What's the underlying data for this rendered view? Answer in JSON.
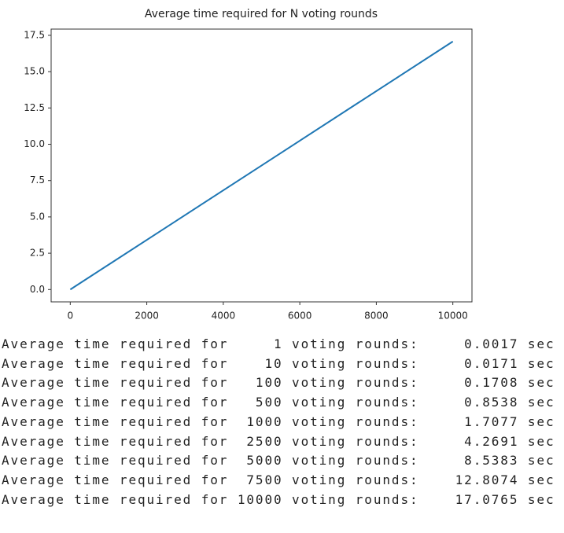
{
  "chart_data": {
    "type": "line",
    "title": "Average time required for N voting rounds",
    "x": [
      1,
      10,
      100,
      500,
      1000,
      2500,
      5000,
      7500,
      10000
    ],
    "series": [
      {
        "name": null,
        "color": "#1f77b4",
        "values": [
          0.0017,
          0.0171,
          0.1708,
          0.8538,
          1.7077,
          4.2691,
          8.5383,
          12.8074,
          17.0765
        ]
      }
    ],
    "xlim": [
      -500,
      10500
    ],
    "xticks": [
      0,
      2000,
      4000,
      6000,
      8000,
      10000
    ],
    "ylim": [
      -0.85,
      17.93
    ],
    "yticks": [
      {
        "value": 0,
        "label": "0.0"
      },
      2.5,
      {
        "value": 5,
        "label": "5.0"
      },
      7.5,
      {
        "value": 10,
        "label": "10.0"
      },
      12.5,
      {
        "value": 15,
        "label": "15.0"
      },
      17.5
    ],
    "grid": false
  },
  "output": [
    "Average time required for     1 voting rounds:     0.0017 sec",
    "Average time required for    10 voting rounds:     0.0171 sec",
    "Average time required for   100 voting rounds:     0.1708 sec",
    "Average time required for   500 voting rounds:     0.8538 sec",
    "Average time required for  1000 voting rounds:     1.7077 sec",
    "Average time required for  2500 voting rounds:     4.2691 sec",
    "Average time required for  5000 voting rounds:     8.5383 sec",
    "Average time required for  7500 voting rounds:    12.8074 sec",
    "Average time required for 10000 voting rounds:    17.0765 sec"
  ]
}
